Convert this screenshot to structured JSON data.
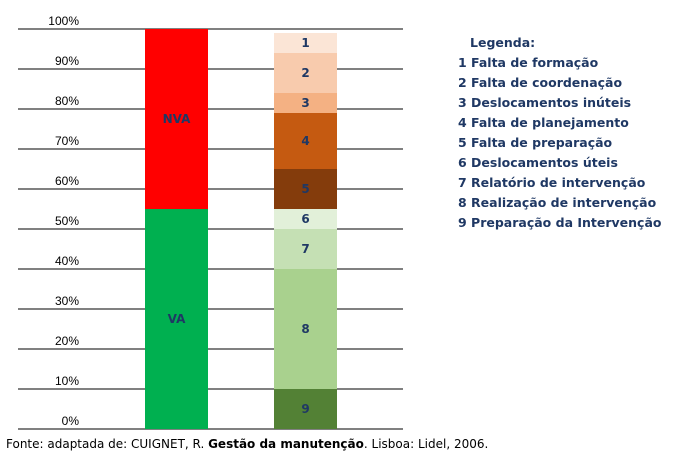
{
  "chart_data": {
    "type": "stacked-bar",
    "y_ticks": [
      "0%",
      "10%",
      "20%",
      "30%",
      "40%",
      "50%",
      "60%",
      "70%",
      "80%",
      "90%",
      "100%"
    ],
    "ylim": [
      0,
      100
    ],
    "bars": [
      {
        "segments": [
          {
            "label": "VA",
            "value": 55,
            "color": "#00b050"
          },
          {
            "label": "NVA",
            "value": 45,
            "color": "#ff0000"
          }
        ]
      },
      {
        "segments": [
          {
            "label": "9",
            "value": 10,
            "color": "#538135"
          },
          {
            "label": "8",
            "value": 30,
            "color": "#a9d18e"
          },
          {
            "label": "7",
            "value": 10,
            "color": "#c5e0b4"
          },
          {
            "label": "6",
            "value": 5,
            "color": "#e2f0d9"
          },
          {
            "label": "5",
            "value": 10,
            "color": "#843c0c"
          },
          {
            "label": "4",
            "value": 14,
            "color": "#c55a11"
          },
          {
            "label": "3",
            "value": 5,
            "color": "#f4b183"
          },
          {
            "label": "2",
            "value": 10,
            "color": "#f8cbad"
          },
          {
            "label": "1",
            "value": 5,
            "color": "#fbe5d6"
          }
        ]
      }
    ],
    "legend": {
      "title": "Legenda:",
      "items": [
        "1 Falta de formação",
        "2 Falta de coordenação",
        "3 Deslocamentos inúteis",
        "4 Falta de planejamento",
        "5 Falta de preparação",
        "6 Deslocamentos úteis",
        "7 Relatório de intervenção",
        "8 Realização de intervenção",
        "9 Preparação da Intervenção"
      ]
    }
  },
  "source": {
    "prefix": "Fonte: adaptada de: CUIGNET, R. ",
    "title": "Gestão da manutenção",
    "suffix": ". Lisboa: Lidel, 2006."
  }
}
